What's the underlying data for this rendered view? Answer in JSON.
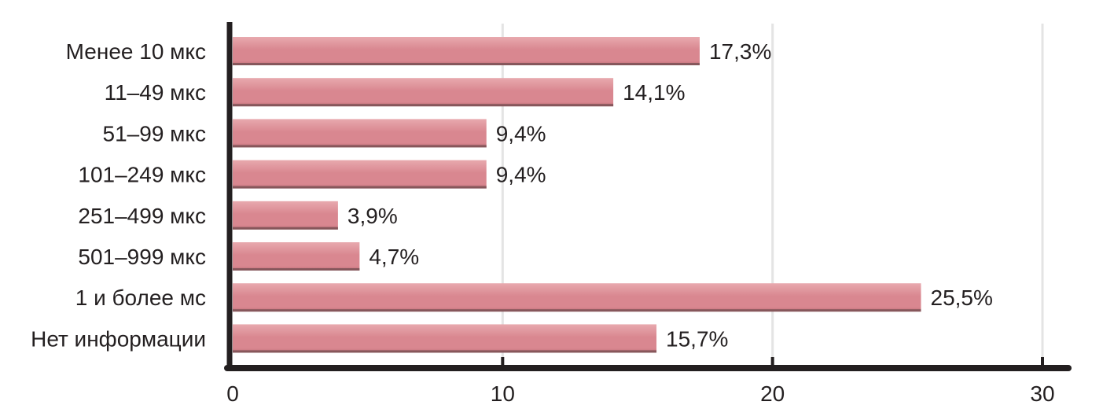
{
  "chart_data": {
    "type": "bar",
    "orientation": "horizontal",
    "categories": [
      "Менее 10 мкс",
      "11–49 мкс",
      "51–99 мкс",
      "101–249 мкс",
      "251–499 мкс",
      "501–999 мкс",
      "1 и более мс",
      "Нет информации"
    ],
    "values": [
      17.3,
      14.1,
      9.4,
      9.4,
      3.9,
      4.7,
      25.5,
      15.7
    ],
    "data_labels": [
      "17,3%",
      "14,1%",
      "9,4%",
      "9,4%",
      "3,9%",
      "4,7%",
      "25,5%",
      "15,7%"
    ],
    "x_ticks": [
      "0",
      "10",
      "20",
      "30"
    ],
    "xlim": [
      0,
      30
    ],
    "grid": true,
    "legend": "none",
    "colors": {
      "bar_top": "#e8a9ae",
      "bar_mid": "#d98790",
      "bar_bottom": "#b86a72",
      "bar_shadow": "#6e4b4e",
      "axis": "#231f20",
      "grid": "#e4e4e4"
    }
  }
}
